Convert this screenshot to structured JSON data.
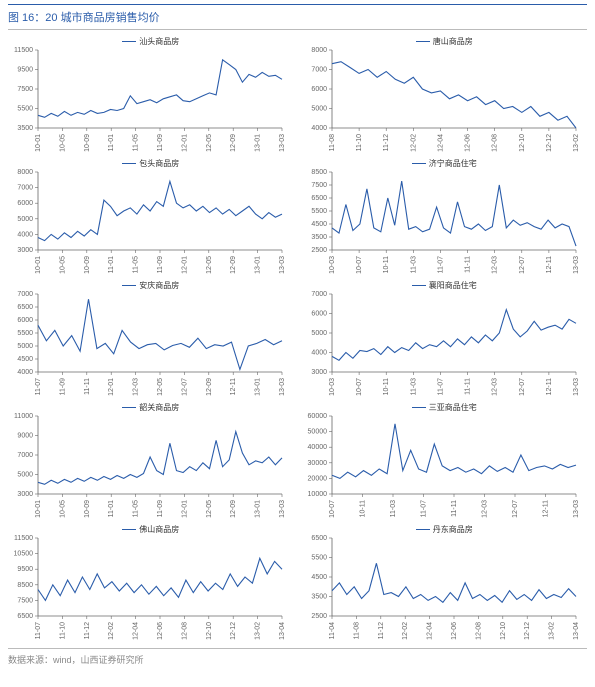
{
  "title": "图 16：20 城市商品房销售均价",
  "footer": "数据来源：wind，山西证券研究所",
  "colors": {
    "line": "#2a5caa",
    "axis": "#666666",
    "axis_text": "#666666",
    "background": "#ffffff"
  },
  "axis_fontsize": 7,
  "line_width": 1.1,
  "charts": [
    {
      "name": "汕头商品房",
      "ylim": [
        3500,
        11500
      ],
      "ytick_step": 2000,
      "xticks": [
        "10-01",
        "10-05",
        "10-09",
        "11-01",
        "11-05",
        "11-09",
        "12-01",
        "12-05",
        "12-09",
        "13-01",
        "13-03"
      ],
      "values": [
        4800,
        4600,
        5000,
        4700,
        5200,
        4800,
        5100,
        4900,
        5300,
        5000,
        5100,
        5400,
        5300,
        5500,
        6800,
        6000,
        6200,
        6400,
        6100,
        6500,
        6700,
        6900,
        6300,
        6200,
        6500,
        6800,
        7100,
        6900,
        10500,
        10000,
        9500,
        8200,
        9000,
        8700,
        9200,
        8800,
        8900,
        8500
      ]
    },
    {
      "name": "唐山商品房",
      "ylim": [
        4000,
        8000
      ],
      "ytick_step": 1000,
      "xticks": [
        "11-08",
        "11-10",
        "11-12",
        "12-02",
        "12-04",
        "12-06",
        "12-08",
        "12-10",
        "12-12",
        "13-02"
      ],
      "values": [
        7300,
        7400,
        7100,
        6800,
        7000,
        6600,
        6900,
        6500,
        6300,
        6600,
        6000,
        5800,
        5900,
        5500,
        5700,
        5400,
        5600,
        5200,
        5400,
        5000,
        5100,
        4800,
        5100,
        4600,
        4800,
        4400,
        4600,
        4000
      ]
    },
    {
      "name": "包头商品房",
      "ylim": [
        3000,
        8000
      ],
      "ytick_step": 1000,
      "xticks": [
        "10-01",
        "10-05",
        "10-09",
        "11-01",
        "11-05",
        "11-09",
        "12-01",
        "12-05",
        "12-09",
        "13-01",
        "13-03"
      ],
      "values": [
        3800,
        3600,
        4000,
        3700,
        4100,
        3800,
        4200,
        3900,
        4300,
        4000,
        6200,
        5800,
        5200,
        5500,
        5700,
        5300,
        5900,
        5500,
        6100,
        5800,
        7400,
        6000,
        5700,
        5900,
        5500,
        5800,
        5400,
        5700,
        5300,
        5600,
        5200,
        5500,
        5800,
        5300,
        5000,
        5400,
        5100,
        5300
      ]
    },
    {
      "name": "济宁商品住宅",
      "ylim": [
        2500,
        8500
      ],
      "ytick_step": 1000,
      "xticks": [
        "10-03",
        "10-07",
        "10-11",
        "11-03",
        "11-07",
        "11-11",
        "12-03",
        "12-07",
        "12-11",
        "13-03"
      ],
      "values": [
        4200,
        3800,
        6000,
        4000,
        4500,
        7200,
        4200,
        3900,
        6500,
        4400,
        7800,
        4100,
        4300,
        3900,
        4100,
        5800,
        4200,
        3800,
        6200,
        4300,
        4100,
        4500,
        4000,
        4300,
        7500,
        4200,
        4800,
        4400,
        4600,
        4300,
        4100,
        4800,
        4200,
        4500,
        4300,
        2800
      ]
    },
    {
      "name": "安庆商品房",
      "ylim": [
        4000,
        7000
      ],
      "ytick_step": 500,
      "xticks": [
        "11-07",
        "11-09",
        "11-11",
        "12-01",
        "12-03",
        "12-05",
        "12-07",
        "12-09",
        "12-11",
        "13-01",
        "13-03"
      ],
      "values": [
        5800,
        5200,
        5600,
        5000,
        5400,
        4800,
        6800,
        4900,
        5100,
        4700,
        5600,
        5150,
        4900,
        5050,
        5100,
        4850,
        5020,
        5100,
        4950,
        5300,
        4900,
        5050,
        5000,
        5150,
        4100,
        5000,
        5100,
        5250,
        5050,
        5200
      ]
    },
    {
      "name": "襄阳商品住宅",
      "ylim": [
        3000,
        7000
      ],
      "ytick_step": 1000,
      "xticks": [
        "10-03",
        "10-07",
        "10-11",
        "11-03",
        "11-07",
        "11-11",
        "12-03",
        "12-07",
        "12-11",
        "13-03"
      ],
      "values": [
        3800,
        3600,
        4000,
        3700,
        4100,
        4050,
        4200,
        3900,
        4300,
        4000,
        4250,
        4100,
        4500,
        4200,
        4400,
        4300,
        4600,
        4300,
        4700,
        4400,
        4800,
        4500,
        4900,
        4600,
        5000,
        6200,
        5200,
        4800,
        5100,
        5600,
        5150,
        5300,
        5400,
        5200,
        5700,
        5500
      ]
    },
    {
      "name": "韶关商品房",
      "ylim": [
        3000,
        11000
      ],
      "ytick_step": 2000,
      "xticks": [
        "10-01",
        "10-05",
        "10-09",
        "11-01",
        "11-05",
        "11-09",
        "12-01",
        "12-05",
        "12-09",
        "13-01",
        "13-03"
      ],
      "values": [
        4200,
        4000,
        4400,
        4100,
        4500,
        4200,
        4600,
        4300,
        4700,
        4400,
        4800,
        4500,
        4900,
        4600,
        5000,
        4700,
        5100,
        6800,
        5400,
        5000,
        8200,
        5400,
        5200,
        5800,
        5400,
        6200,
        5600,
        8500,
        5800,
        6500,
        9400,
        7200,
        6000,
        6400,
        6200,
        6800,
        6000,
        6700
      ]
    },
    {
      "name": "三亚商品住宅",
      "ylim": [
        10000,
        60000
      ],
      "ytick_step": 10000,
      "xticks": [
        "10-07",
        "10-11",
        "11-03",
        "11-07",
        "11-11",
        "12-03",
        "12-07",
        "12-11",
        "13-03"
      ],
      "values": [
        22000,
        20000,
        24000,
        21000,
        25000,
        22000,
        26000,
        23000,
        55000,
        25000,
        38000,
        26000,
        24000,
        42000,
        28000,
        25000,
        27000,
        24000,
        26000,
        23000,
        28000,
        24500,
        27000,
        24000,
        35000,
        25000,
        27000,
        28000,
        26000,
        29000,
        27000,
        28500
      ]
    },
    {
      "name": "佛山商品房",
      "ylim": [
        6500,
        11500
      ],
      "ytick_step": 1000,
      "xticks": [
        "11-07",
        "11-10",
        "11-12",
        "12-02",
        "12-04",
        "12-06",
        "12-08",
        "12-10",
        "12-12",
        "13-02",
        "13-04"
      ],
      "values": [
        8200,
        7500,
        8500,
        7800,
        8800,
        8000,
        9000,
        8200,
        9200,
        8300,
        8700,
        8100,
        8600,
        8000,
        8500,
        7900,
        8400,
        7800,
        8300,
        7700,
        8800,
        8000,
        8700,
        8100,
        8600,
        8200,
        9200,
        8400,
        9000,
        8600,
        10200,
        9200,
        10000,
        9500
      ]
    },
    {
      "name": "丹东商品房",
      "ylim": [
        2500,
        6500
      ],
      "ytick_step": 1000,
      "xticks": [
        "11-04",
        "11-08",
        "11-12",
        "12-02",
        "12-04",
        "12-06",
        "12-08",
        "12-10",
        "12-12",
        "13-02",
        "13-04"
      ],
      "values": [
        3800,
        4200,
        3600,
        4000,
        3400,
        3800,
        5200,
        3600,
        3700,
        3500,
        4000,
        3400,
        3600,
        3300,
        3500,
        3200,
        3700,
        3300,
        4200,
        3400,
        3600,
        3300,
        3550,
        3200,
        3800,
        3350,
        3600,
        3300,
        3850,
        3400,
        3600,
        3450,
        3900,
        3500
      ]
    }
  ]
}
